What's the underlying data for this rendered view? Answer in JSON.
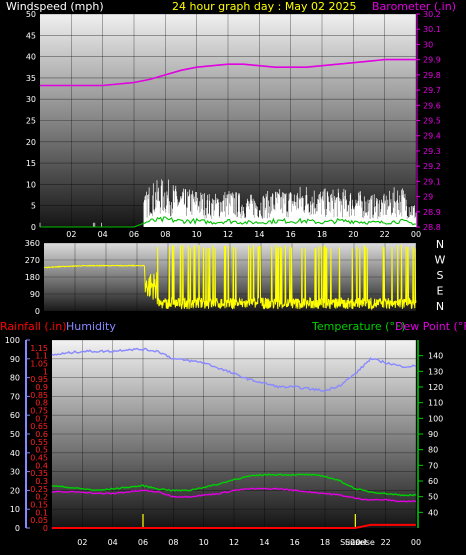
{
  "header": {
    "windspeed_label": "Windspeed (mph)",
    "title": "24 hour graph day : May 02 2025",
    "barometer_label": "Barometer (.in)"
  },
  "bottom_header": {
    "rainfall_label": "Rainfall (.in)",
    "humidity_label": "Humidity",
    "temperature_label": "Temperature (°F)",
    "dewpoint_label": "Dew Point (°F)"
  },
  "colors": {
    "wind": "#ffffff",
    "gust": "#ffffff",
    "avg_wind": "#00c000",
    "barometer": "#e000e0",
    "wind_dir": "#ffff00",
    "humidity": "#8888ff",
    "temperature": "#00d000",
    "dewpoint": "#e000e0",
    "rain": "#ff0000",
    "rain_left_axis": "#ff2020",
    "temp_axis": "#00d000",
    "title": "#ffff00"
  },
  "chart_data": [
    {
      "type": "line",
      "title": "24 hour graph day : May 02 2025",
      "xlabel": "",
      "x_tick_labels": [
        "02",
        "04",
        "06",
        "08",
        "10",
        "12",
        "14",
        "16",
        "18",
        "20",
        "22",
        "00"
      ],
      "left_axis": {
        "label": "Windspeed (mph)",
        "ylim": [
          0,
          50
        ],
        "ticks": [
          0,
          5,
          10,
          15,
          20,
          25,
          30,
          35,
          40,
          45,
          50
        ]
      },
      "right_axis": {
        "label": "Barometer (.in)",
        "ylim": [
          28.8,
          30.2
        ],
        "ticks": [
          "28.8",
          "28.9",
          "29",
          "29.1",
          "29.2",
          "29.3",
          "29.4",
          "29.5",
          "29.6",
          "29.7",
          "29.8",
          "29.9",
          "30",
          "30.1",
          "30.2"
        ]
      },
      "series": [
        {
          "name": "Barometer",
          "axis": "right",
          "x": [
            0,
            1,
            2,
            3,
            4,
            5,
            6,
            7,
            8,
            9,
            10,
            11,
            12,
            13,
            14,
            15,
            16,
            17,
            18,
            19,
            20,
            21,
            22,
            23,
            24
          ],
          "values": [
            29.73,
            29.73,
            29.73,
            29.73,
            29.73,
            29.74,
            29.75,
            29.77,
            29.8,
            29.83,
            29.85,
            29.86,
            29.87,
            29.87,
            29.86,
            29.85,
            29.85,
            29.85,
            29.86,
            29.87,
            29.88,
            29.89,
            29.9,
            29.9,
            29.9
          ]
        },
        {
          "name": "Wind speed",
          "axis": "left",
          "x": [
            0,
            1,
            2,
            3,
            4,
            5,
            6,
            7,
            8,
            9,
            10,
            11,
            12,
            13,
            14,
            15,
            16,
            17,
            18,
            19,
            20,
            21,
            22,
            23,
            24
          ],
          "values": [
            0,
            0,
            0,
            0,
            0,
            0,
            0,
            4,
            5,
            4,
            4,
            3,
            4,
            3,
            3,
            4,
            4,
            4,
            3,
            4,
            4,
            3,
            3,
            4,
            2
          ]
        },
        {
          "name": "Wind gust",
          "axis": "left",
          "x": [
            0,
            1,
            2,
            3,
            4,
            5,
            6,
            7,
            8,
            9,
            10,
            11,
            12,
            13,
            14,
            15,
            16,
            17,
            18,
            19,
            20,
            21,
            22,
            23,
            24
          ],
          "values": [
            1,
            0,
            0,
            1,
            0,
            0,
            1,
            8,
            9,
            7,
            7,
            6,
            7,
            6,
            6,
            7,
            7,
            8,
            7,
            7,
            7,
            6,
            6,
            8,
            4
          ]
        }
      ]
    },
    {
      "type": "line",
      "xlabel": "",
      "left_axis": {
        "ylim": [
          0,
          360
        ],
        "ticks": [
          0,
          90,
          180,
          270,
          360
        ]
      },
      "right_axis_labels": [
        "N",
        "W",
        "S",
        "E",
        "N"
      ],
      "series": [
        {
          "name": "Wind direction",
          "x": [
            0,
            1,
            2,
            3,
            4,
            5,
            6,
            6.5,
            7,
            8,
            9,
            10,
            11,
            12,
            13,
            14,
            15,
            16,
            17,
            18,
            19,
            20,
            21,
            22,
            23,
            24
          ],
          "values": [
            230,
            235,
            238,
            240,
            240,
            240,
            240,
            240,
            150,
            40,
            60,
            30,
            50,
            40,
            30,
            40,
            20,
            30,
            40,
            20,
            40,
            30,
            30,
            20,
            30,
            20
          ]
        }
      ]
    },
    {
      "type": "line",
      "x_tick_labels": [
        "02",
        "04",
        "06",
        "08",
        "10",
        "12",
        "14",
        "16",
        "18",
        "20",
        "22",
        "00"
      ],
      "annotations": [
        "Sunset",
        "Sunrise"
      ],
      "left_axis_outer": {
        "label": "Humidity",
        "ylim": [
          0,
          100
        ],
        "ticks": [
          0,
          10,
          20,
          30,
          40,
          50,
          60,
          70,
          80,
          90,
          100
        ]
      },
      "left_axis_inner": {
        "label": "Rainfall (.in)",
        "ylim": [
          0,
          1.2
        ],
        "ticks": [
          "0",
          "0.05",
          "0.1",
          "0.15",
          "0.2",
          "0.25",
          "0.3",
          "0.35",
          "0.4",
          "0.45",
          "0.5",
          "0.55",
          "0.6",
          "0.65",
          "0.7",
          "0.75",
          "0.8",
          "0.85",
          "0.9",
          "0.95",
          "1",
          "1.05",
          "1.1",
          "1.15"
        ]
      },
      "right_axis": {
        "label": "Temperature (°F)",
        "ylim": [
          30,
          150
        ],
        "ticks": [
          40,
          50,
          60,
          70,
          80,
          90,
          100,
          110,
          120,
          130,
          140
        ]
      },
      "series": [
        {
          "name": "Humidity",
          "axis": "left_outer",
          "x": [
            0,
            1,
            2,
            3,
            4,
            5,
            6,
            7,
            8,
            9,
            10,
            11,
            12,
            13,
            14,
            15,
            16,
            17,
            18,
            19,
            20,
            21,
            22,
            23,
            24
          ],
          "values": [
            92,
            93,
            94,
            94,
            94,
            95,
            95,
            94,
            90,
            89,
            88,
            85,
            82,
            79,
            77,
            75,
            75,
            74,
            73,
            76,
            82,
            90,
            88,
            86,
            86
          ]
        },
        {
          "name": "Temperature",
          "axis": "right",
          "x": [
            0,
            1,
            2,
            3,
            4,
            5,
            6,
            7,
            8,
            9,
            10,
            11,
            12,
            13,
            14,
            15,
            16,
            17,
            18,
            19,
            20,
            21,
            22,
            23,
            24
          ],
          "values": [
            57,
            56,
            55,
            54,
            55,
            56,
            57,
            55,
            54,
            54,
            56,
            58,
            61,
            63,
            64,
            64,
            64,
            64,
            63,
            60,
            55,
            53,
            52,
            51,
            51
          ]
        },
        {
          "name": "Dew Point",
          "axis": "right",
          "x": [
            0,
            1,
            2,
            3,
            4,
            5,
            6,
            7,
            8,
            9,
            10,
            11,
            12,
            13,
            14,
            15,
            16,
            17,
            18,
            19,
            20,
            21,
            22,
            23,
            24
          ],
          "values": [
            53,
            53,
            53,
            52,
            52,
            53,
            54,
            53,
            50,
            50,
            51,
            52,
            54,
            55,
            55,
            55,
            54,
            53,
            52,
            51,
            49,
            48,
            48,
            47,
            47
          ]
        },
        {
          "name": "Rainfall",
          "axis": "left_inner",
          "x": [
            0,
            1,
            2,
            3,
            4,
            5,
            6,
            7,
            8,
            9,
            10,
            11,
            12,
            13,
            14,
            15,
            16,
            17,
            18,
            19,
            20,
            21,
            22,
            23,
            24
          ],
          "values": [
            0,
            0,
            0,
            0,
            0,
            0,
            0,
            0,
            0,
            0,
            0,
            0,
            0,
            0,
            0,
            0,
            0,
            0,
            0,
            0,
            0,
            0.02,
            0.02,
            0.02,
            0.02
          ]
        }
      ]
    }
  ]
}
